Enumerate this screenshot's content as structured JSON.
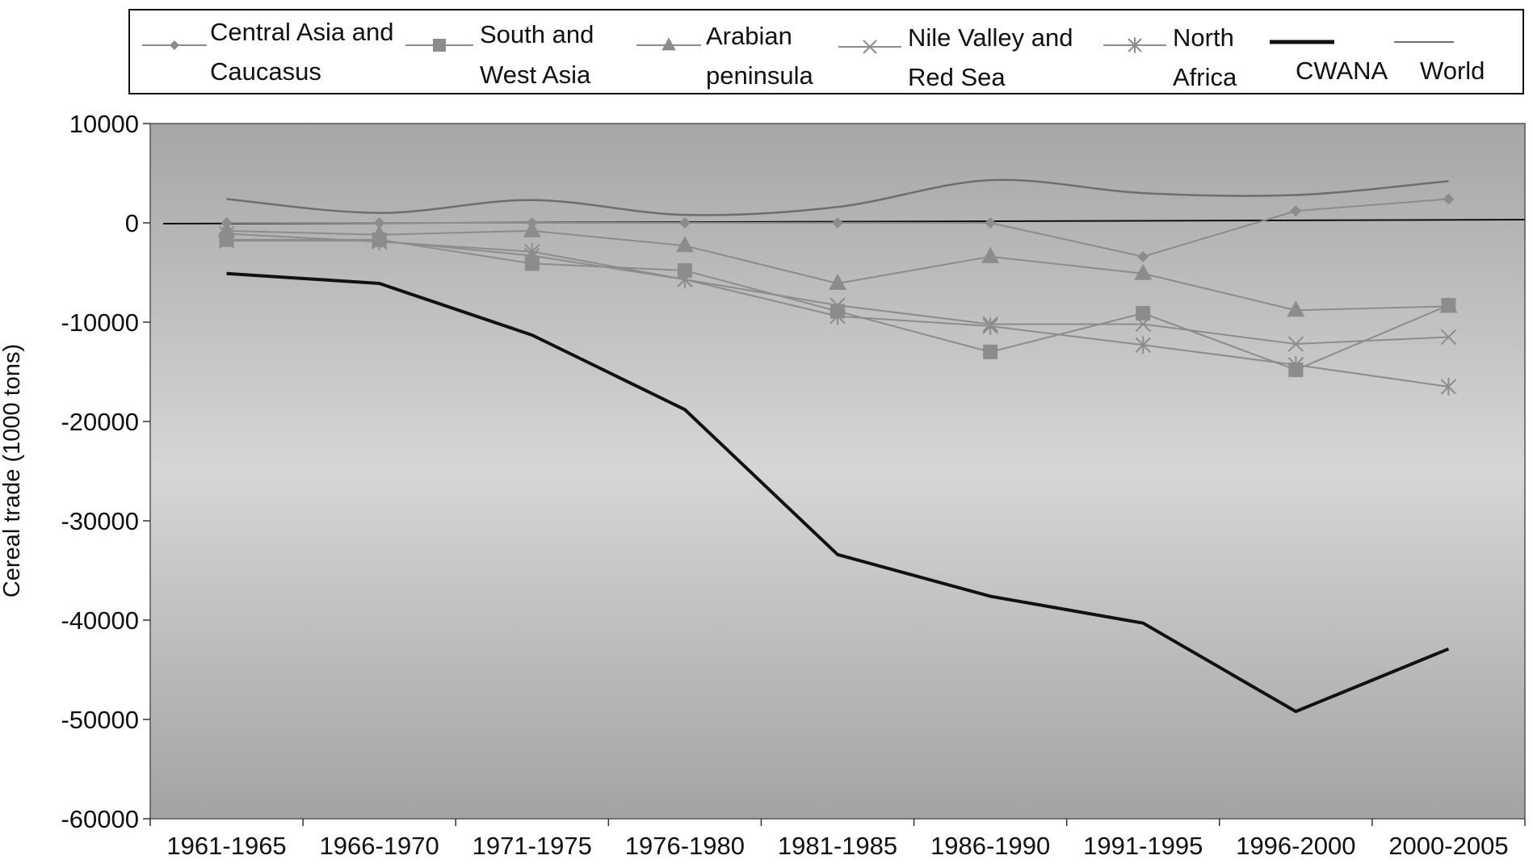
{
  "chart_data": {
    "type": "line",
    "title": "",
    "xlabel": "",
    "ylabel": "Cereal trade  (1000 tons)",
    "ylim": [
      -60000,
      10000
    ],
    "yticks": [
      10000,
      0,
      -10000,
      -20000,
      -30000,
      -40000,
      -50000,
      -60000
    ],
    "ytick_labels": [
      "10000",
      "0",
      "-10000",
      "-20000",
      "-30000",
      "-40000",
      "-50000",
      "-60000"
    ],
    "categories": [
      "1961-1965",
      "1966-1970",
      "1971-1975",
      "1976-1980",
      "1981-1985",
      "1986-1990",
      "1991-1995",
      "1996-2000",
      "2000-2005"
    ],
    "grid": false,
    "legend_position": "top",
    "series": [
      {
        "name": "Central Asia and Caucasus",
        "label_lines": [
          "Central Asia and",
          "Caucasus"
        ],
        "marker": "diamond",
        "color": "#8c8c8c",
        "width": 2,
        "values": [
          0,
          0,
          0,
          0,
          0,
          0,
          -3400,
          1200,
          2400
        ]
      },
      {
        "name": "South and West Asia",
        "label_lines": [
          "South and",
          "West Asia"
        ],
        "marker": "square",
        "color": "#8c8c8c",
        "width": 2,
        "values": [
          -1700,
          -1700,
          -4100,
          -4800,
          -8900,
          -13000,
          -9100,
          -14800,
          -8300
        ]
      },
      {
        "name": "Arabian peninsula",
        "label_lines": [
          "Arabian",
          "peninsula"
        ],
        "marker": "triangle",
        "color": "#8c8c8c",
        "width": 2,
        "values": [
          -800,
          -1200,
          -800,
          -2300,
          -6100,
          -3400,
          -5100,
          -8800,
          -8400
        ]
      },
      {
        "name": "Nile Valley and Red Sea",
        "label_lines": [
          "Nile Valley and",
          "Red Sea"
        ],
        "marker": "x",
        "color": "#8c8c8c",
        "width": 2,
        "values": [
          -1800,
          -1800,
          -3300,
          -5700,
          -8300,
          -10200,
          -10200,
          -12200,
          -11500
        ]
      },
      {
        "name": "North Africa",
        "label_lines": [
          "North",
          "Africa"
        ],
        "marker": "asterisk",
        "color": "#8c8c8c",
        "width": 2,
        "values": [
          -1100,
          -1900,
          -2900,
          -5700,
          -9400,
          -10400,
          -12300,
          -14300,
          -16500
        ]
      },
      {
        "name": "CWANA",
        "label_lines": [
          "CWANA"
        ],
        "marker": "none",
        "color": "#111111",
        "width": 4,
        "values": [
          -5100,
          -6100,
          -11300,
          -18800,
          -33400,
          -37600,
          -40300,
          -49200,
          -42900
        ]
      },
      {
        "name": "World",
        "label_lines": [
          "World"
        ],
        "marker": "none",
        "color": "#6e6e6e",
        "width": 2.5,
        "smooth": true,
        "values": [
          2400,
          1000,
          2300,
          800,
          1600,
          4300,
          3000,
          2800,
          4200
        ]
      }
    ]
  }
}
